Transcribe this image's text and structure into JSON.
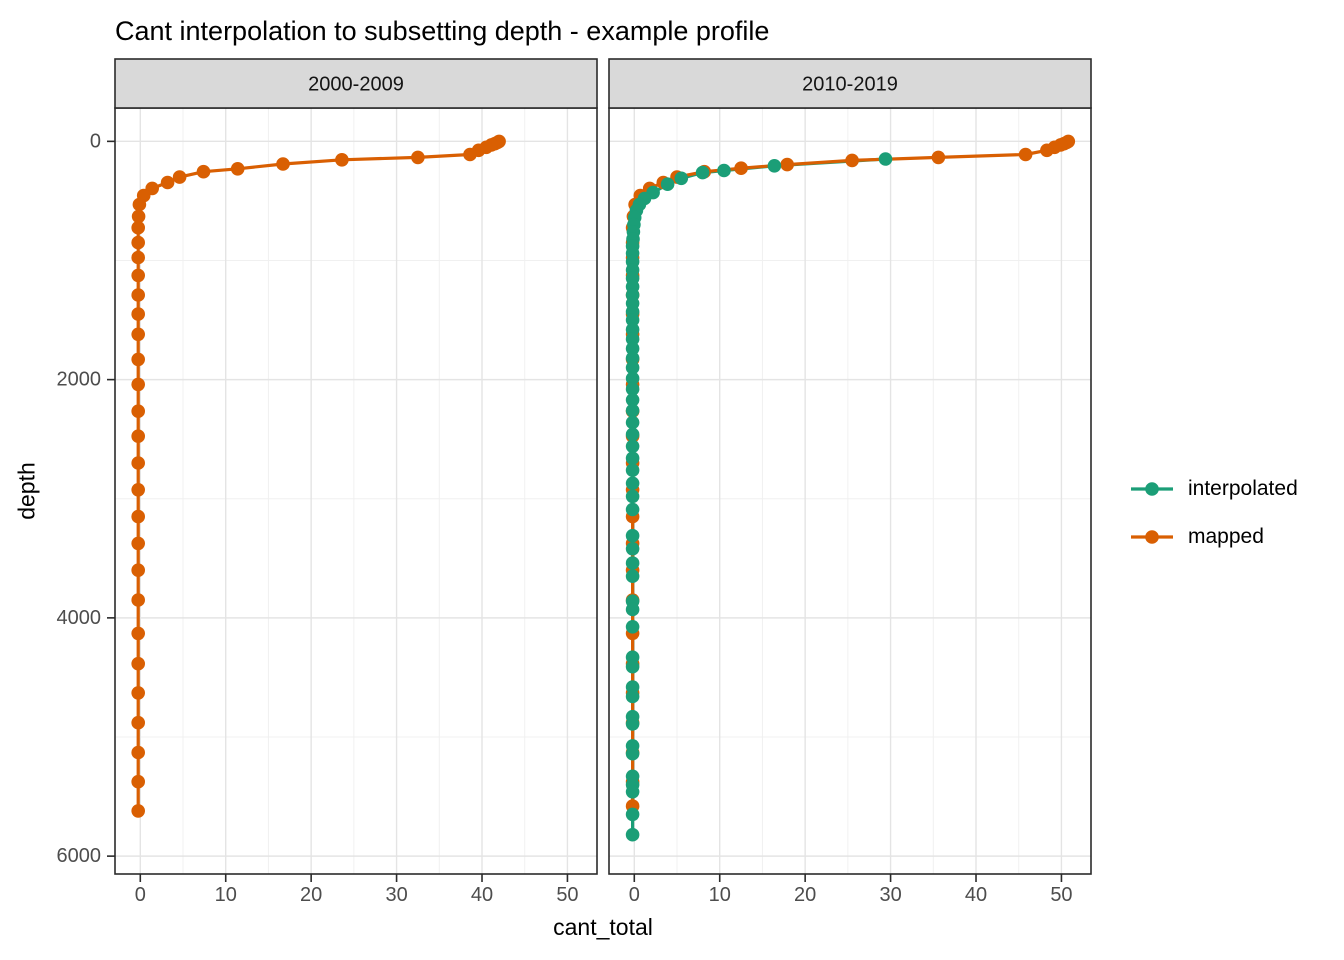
{
  "chart_data": {
    "type": "line",
    "title": "Cant interpolation to subsetting depth - example profile",
    "xlabel": "cant_total",
    "ylabel": "depth",
    "x_ticks": [
      0,
      10,
      20,
      30,
      40,
      50
    ],
    "x_minor": [
      5,
      15,
      25,
      35,
      45
    ],
    "y_ticks": [
      0,
      2000,
      4000,
      6000
    ],
    "y_minor": [
      1000,
      3000,
      5000
    ],
    "xlim": [
      -2.96,
      53.46
    ],
    "ylim": [
      -280,
      6150
    ],
    "y_reversed": true,
    "grid": true,
    "legend_position": "right",
    "legend": [
      "interpolated",
      "mapped"
    ],
    "colors": {
      "interpolated": "#1B9E77",
      "mapped": "#D95F02"
    },
    "style": {
      "strip_bg": "#D9D9D9",
      "strip_border": "#2B2B2B",
      "panel_border": "#2B2B2B",
      "grid_major": "#E4E4E4",
      "grid_minor": "#F0F0F0",
      "tick_label": "#4D4D4D",
      "tick_mark": "#2B2B2B",
      "background": "#FFFFFF"
    },
    "facets": [
      {
        "label": "2000-2009",
        "series": [
          {
            "name": "mapped",
            "points": [
              [
                0,
                42.0
              ],
              [
                10,
                41.8
              ],
              [
                20,
                41.5
              ],
              [
                30,
                41.1
              ],
              [
                50,
                40.5
              ],
              [
                75,
                39.6
              ],
              [
                110,
                38.6
              ],
              [
                135,
                32.5
              ],
              [
                155,
                23.6
              ],
              [
                190,
                16.7
              ],
              [
                230,
                11.4
              ],
              [
                255,
                7.4
              ],
              [
                300,
                4.6
              ],
              [
                345,
                3.2
              ],
              [
                395,
                1.4
              ],
              [
                455,
                0.4
              ],
              [
                530,
                -0.1
              ],
              [
                630,
                -0.2
              ],
              [
                725,
                -0.25
              ],
              [
                850,
                -0.25
              ],
              [
                975,
                -0.25
              ],
              [
                1125,
                -0.25
              ],
              [
                1290,
                -0.25
              ],
              [
                1450,
                -0.25
              ],
              [
                1620,
                -0.25
              ],
              [
                1830,
                -0.25
              ],
              [
                2040,
                -0.25
              ],
              [
                2265,
                -0.25
              ],
              [
                2475,
                -0.25
              ],
              [
                2700,
                -0.25
              ],
              [
                2925,
                -0.25
              ],
              [
                3150,
                -0.25
              ],
              [
                3375,
                -0.25
              ],
              [
                3600,
                -0.25
              ],
              [
                3850,
                -0.25
              ],
              [
                4130,
                -0.25
              ],
              [
                4385,
                -0.25
              ],
              [
                4630,
                -0.25
              ],
              [
                4880,
                -0.25
              ],
              [
                5130,
                -0.25
              ],
              [
                5375,
                -0.25
              ],
              [
                5620,
                -0.25
              ]
            ]
          }
        ]
      },
      {
        "label": "2010-2019",
        "series": [
          {
            "name": "interpolated",
            "points": [
              [
                148,
                29.4
              ],
              [
                205,
                16.4
              ],
              [
                245,
                10.5
              ],
              [
                262,
                8.0
              ],
              [
                310,
                5.5
              ],
              [
                360,
                3.9
              ],
              [
                430,
                2.2
              ],
              [
                480,
                1.2
              ],
              [
                530,
                0.6
              ],
              [
                580,
                0.25
              ],
              [
                640,
                0.05
              ],
              [
                700,
                -0.05
              ],
              [
                760,
                -0.1
              ],
              [
                820,
                -0.15
              ],
              [
                880,
                -0.2
              ],
              [
                940,
                -0.2
              ],
              [
                1010,
                -0.2
              ],
              [
                1080,
                -0.2
              ],
              [
                1150,
                -0.2
              ],
              [
                1220,
                -0.2
              ],
              [
                1290,
                -0.2
              ],
              [
                1360,
                -0.2
              ],
              [
                1430,
                -0.2
              ],
              [
                1500,
                -0.2
              ],
              [
                1580,
                -0.2
              ],
              [
                1660,
                -0.2
              ],
              [
                1740,
                -0.2
              ],
              [
                1820,
                -0.2
              ],
              [
                1900,
                -0.2
              ],
              [
                1990,
                -0.2
              ],
              [
                2080,
                -0.2
              ],
              [
                2170,
                -0.2
              ],
              [
                2260,
                -0.2
              ],
              [
                2360,
                -0.2
              ],
              [
                2460,
                -0.2
              ],
              [
                2560,
                -0.2
              ],
              [
                2660,
                -0.2
              ],
              [
                2760,
                -0.2
              ],
              [
                2870,
                -0.2
              ],
              [
                2980,
                -0.2
              ],
              [
                3090,
                -0.2
              ],
              [
                3310,
                -0.2
              ],
              [
                3420,
                -0.2
              ],
              [
                3540,
                -0.2
              ],
              [
                3650,
                -0.2
              ],
              [
                3860,
                -0.2
              ],
              [
                3930,
                -0.2
              ],
              [
                4075,
                -0.2
              ],
              [
                4330,
                -0.2
              ],
              [
                4410,
                -0.2
              ],
              [
                4580,
                -0.2
              ],
              [
                4660,
                -0.2
              ],
              [
                4830,
                -0.2
              ],
              [
                4890,
                -0.2
              ],
              [
                5075,
                -0.2
              ],
              [
                5140,
                -0.2
              ],
              [
                5330,
                -0.2
              ],
              [
                5400,
                -0.2
              ],
              [
                5460,
                -0.2
              ],
              [
                5650,
                -0.2
              ],
              [
                5820,
                -0.2
              ]
            ]
          },
          {
            "name": "mapped",
            "points": [
              [
                0,
                50.8
              ],
              [
                10,
                50.6
              ],
              [
                20,
                50.3
              ],
              [
                30,
                49.9
              ],
              [
                50,
                49.2
              ],
              [
                75,
                48.3
              ],
              [
                110,
                45.8
              ],
              [
                135,
                35.6
              ],
              [
                160,
                25.5
              ],
              [
                195,
                17.9
              ],
              [
                225,
                12.5
              ],
              [
                255,
                8.2
              ],
              [
                300,
                5.0
              ],
              [
                345,
                3.4
              ],
              [
                395,
                1.8
              ],
              [
                455,
                0.7
              ],
              [
                530,
                0.1
              ],
              [
                630,
                -0.1
              ],
              [
                725,
                -0.2
              ],
              [
                850,
                -0.2
              ],
              [
                975,
                -0.2
              ],
              [
                1125,
                -0.2
              ],
              [
                1290,
                -0.2
              ],
              [
                1450,
                -0.2
              ],
              [
                1620,
                -0.2
              ],
              [
                1830,
                -0.2
              ],
              [
                2040,
                -0.2
              ],
              [
                2265,
                -0.2
              ],
              [
                2475,
                -0.2
              ],
              [
                2700,
                -0.2
              ],
              [
                2925,
                -0.2
              ],
              [
                3150,
                -0.2
              ],
              [
                3375,
                -0.2
              ],
              [
                3600,
                -0.2
              ],
              [
                3850,
                -0.2
              ],
              [
                4130,
                -0.2
              ],
              [
                4385,
                -0.2
              ],
              [
                4630,
                -0.2
              ],
              [
                4880,
                -0.2
              ],
              [
                5130,
                -0.2
              ],
              [
                5375,
                -0.2
              ],
              [
                5580,
                -0.2
              ]
            ]
          }
        ]
      }
    ]
  }
}
